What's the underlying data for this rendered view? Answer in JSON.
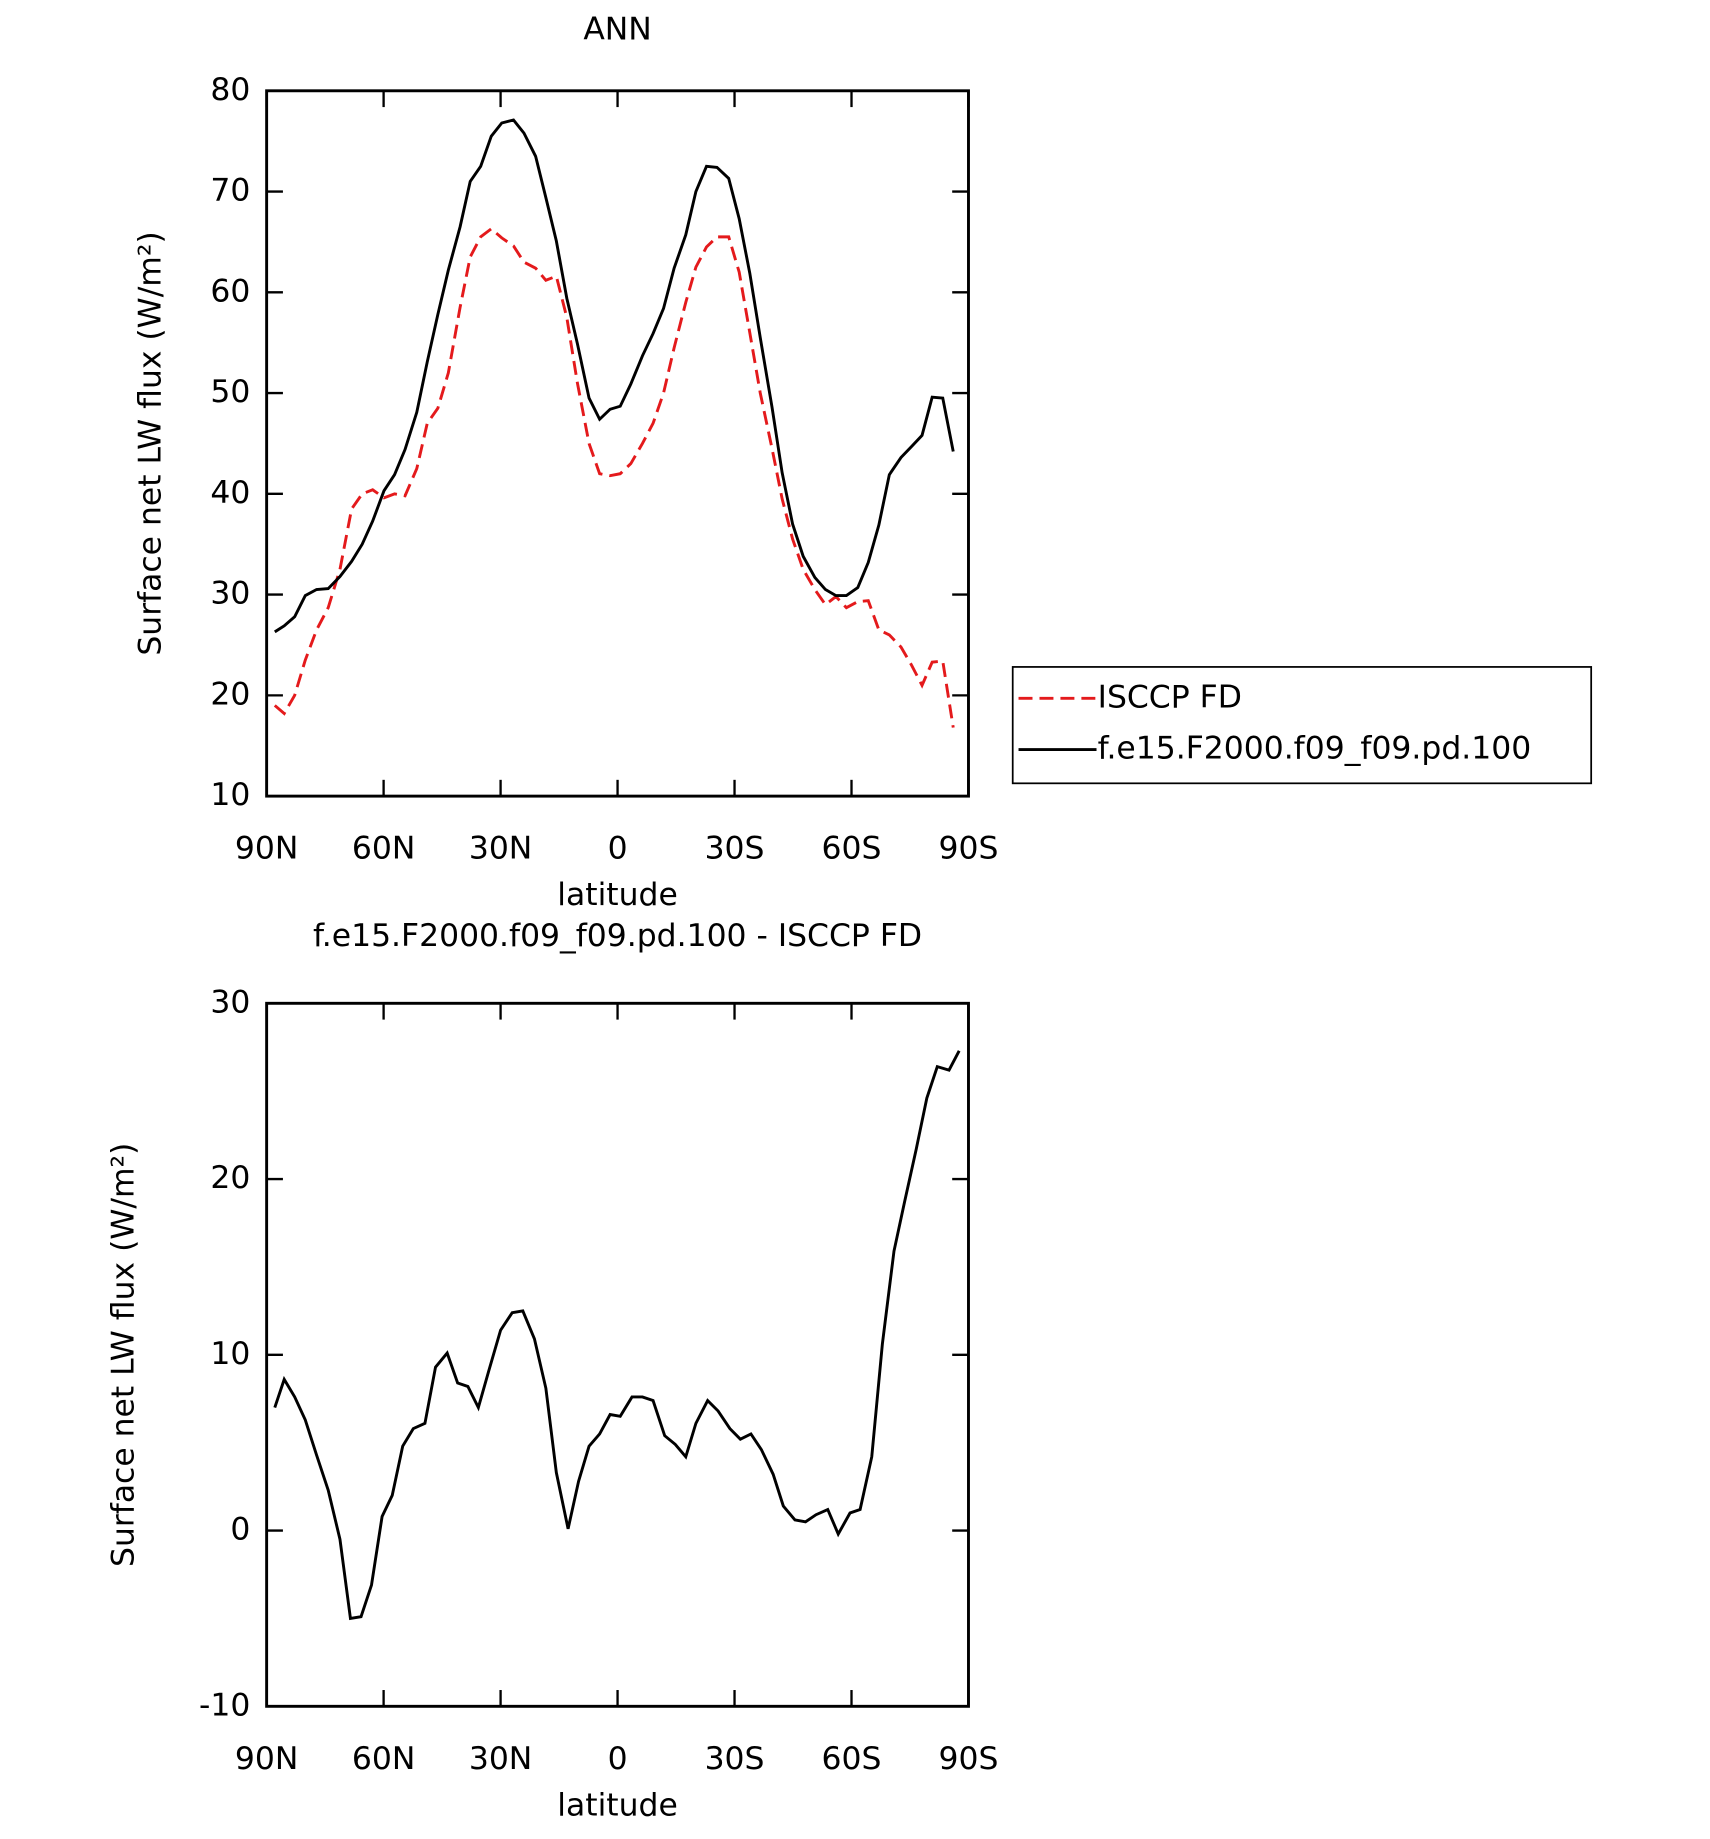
{
  "chart_data": [
    {
      "type": "line",
      "title": "ANN",
      "xlabel": "latitude",
      "ylabel": "Surface net LW flux (W/m²)",
      "x": [
        87.9,
        85.5,
        82.8,
        80.1,
        77.2,
        74.2,
        71.2,
        68.2,
        65.5,
        62.8,
        59.9,
        57.2,
        54.5,
        51.5,
        48.8,
        46.1,
        43.4,
        40.4,
        37.8,
        35.1,
        32.4,
        29.7,
        26.7,
        24.0,
        21.0,
        18.4,
        15.7,
        13.0,
        10.3,
        7.3,
        4.6,
        1.9,
        -0.7,
        -3.4,
        -6.4,
        -9.1,
        -11.8,
        -14.5,
        -17.5,
        -20.1,
        -22.8,
        -25.5,
        -28.5,
        -31.2,
        -33.9,
        -36.6,
        -39.6,
        -42.2,
        -44.9,
        -47.6,
        -50.6,
        -53.3,
        -56.0,
        -58.7,
        -61.6,
        -64.3,
        -67.0,
        -69.7,
        -72.7,
        -75.4,
        -78.1,
        -80.7,
        -83.4,
        -86.1
      ],
      "series": [
        {
          "name": "ISCCP FD",
          "color": "#e41a1c",
          "style": "dashed",
          "values": [
            19,
            18.2,
            20,
            23.5,
            26.5,
            28.7,
            32.5,
            38.5,
            40,
            40.4,
            39.6,
            40,
            39.8,
            42.5,
            47,
            48.5,
            52,
            58.5,
            63.5,
            65.5,
            66.3,
            65.4,
            64.6,
            63,
            62.4,
            61.2,
            61.6,
            57.5,
            51,
            45,
            42,
            41.8,
            42,
            43,
            45,
            47,
            50,
            54.5,
            59,
            62.5,
            64.5,
            65.5,
            65.5,
            62,
            56,
            50,
            44.5,
            39.5,
            35.5,
            32.5,
            30.5,
            29,
            29.8,
            28.7,
            29.3,
            29.4,
            26.5,
            26,
            24.8,
            23,
            21,
            23.3,
            23.4,
            16.8
          ]
        },
        {
          "name": "f.e15.F2000.f09_f09.pd.100",
          "color": "#000000",
          "style": "solid",
          "values": [
            26.3,
            26.9,
            27.8,
            29.9,
            30.5,
            30.6,
            31.8,
            33.3,
            35.0,
            37.3,
            40.3,
            41.9,
            44.4,
            48.1,
            53.1,
            57.8,
            62.2,
            66.5,
            71.0,
            72.5,
            75.5,
            76.8,
            77.1,
            75.8,
            73.5,
            69.4,
            65.1,
            59.4,
            54.9,
            49.5,
            47.4,
            48.4,
            48.7,
            50.9,
            53.7,
            55.9,
            58.4,
            62.4,
            65.7,
            70.0,
            72.5,
            72.4,
            71.3,
            67.3,
            61.9,
            55.5,
            48.6,
            42.1,
            37.0,
            33.8,
            31.7,
            30.5,
            29.9,
            29.9,
            30.7,
            33.2,
            36.9,
            41.9,
            43.6,
            44.7,
            45.8,
            49.6,
            49.5,
            44.2
          ]
        }
      ],
      "xlim": [
        90,
        -90
      ],
      "xticks": [
        {
          "value": 90,
          "label": "90N"
        },
        {
          "value": 60,
          "label": "60N"
        },
        {
          "value": 30,
          "label": "30N"
        },
        0,
        {
          "value": -30,
          "label": "30S"
        },
        {
          "value": -60,
          "label": "60S"
        },
        {
          "value": -90,
          "label": "90S"
        }
      ],
      "ylim": [
        10,
        80
      ],
      "yticks": [
        10,
        20,
        30,
        40,
        50,
        60,
        70,
        80
      ],
      "legend": "right"
    },
    {
      "type": "line",
      "title": "f.e15.F2000.f09_f09.pd.100 - ISCCP FD",
      "xlabel": "latitude",
      "ylabel": "Surface net LW flux (W/m²)",
      "x": [
        87.9,
        85.5,
        82.8,
        80.1,
        77.2,
        74.2,
        71.2,
        68.5,
        65.8,
        63.1,
        60.4,
        57.8,
        55.1,
        52.4,
        49.4,
        46.7,
        43.7,
        41.0,
        38.4,
        35.7,
        33.0,
        30.0,
        27.0,
        24.3,
        21.3,
        18.4,
        15.7,
        12.7,
        10.0,
        7.3,
        4.6,
        1.9,
        -0.7,
        -3.7,
        -6.4,
        -9.1,
        -12.1,
        -14.8,
        -17.5,
        -20.1,
        -23.1,
        -25.8,
        -28.8,
        -31.5,
        -34.2,
        -36.9,
        -39.9,
        -42.5,
        -45.5,
        -48.2,
        -50.9,
        -53.9,
        -56.6,
        -59.6,
        -62.2,
        -65.2,
        -67.9,
        -70.9,
        -73.6,
        -76.6,
        -79.3,
        -82.0,
        -85.0,
        -87.6
      ],
      "values": [
        7.0,
        8.6,
        7.6,
        6.3,
        4.3,
        2.3,
        -0.5,
        -5.0,
        -4.9,
        -3.1,
        0.8,
        2.0,
        4.8,
        5.8,
        6.1,
        9.3,
        10.1,
        8.4,
        8.2,
        7.0,
        9.1,
        11.4,
        12.4,
        12.5,
        10.9,
        8.1,
        3.3,
        0.1,
        2.8,
        4.8,
        5.5,
        6.6,
        6.5,
        7.6,
        7.6,
        7.4,
        5.4,
        4.9,
        4.2,
        6.1,
        7.4,
        6.8,
        5.8,
        5.2,
        5.5,
        4.6,
        3.2,
        1.4,
        0.6,
        0.5,
        0.9,
        1.2,
        -0.2,
        1.0,
        1.2,
        4.2,
        10.6,
        15.9,
        18.7,
        21.7,
        24.6,
        26.4,
        26.2,
        27.3
      ],
      "color": "#000000",
      "xlim": [
        90,
        -90
      ],
      "xticks": [
        {
          "value": 90,
          "label": "90N"
        },
        {
          "value": 60,
          "label": "60N"
        },
        {
          "value": 30,
          "label": "30N"
        },
        0,
        {
          "value": -30,
          "label": "30S"
        },
        {
          "value": -60,
          "label": "60S"
        },
        {
          "value": -90,
          "label": "90S"
        }
      ],
      "ylim": [
        -10,
        30
      ],
      "yticks": [
        -10,
        0,
        10,
        20,
        30
      ]
    }
  ]
}
